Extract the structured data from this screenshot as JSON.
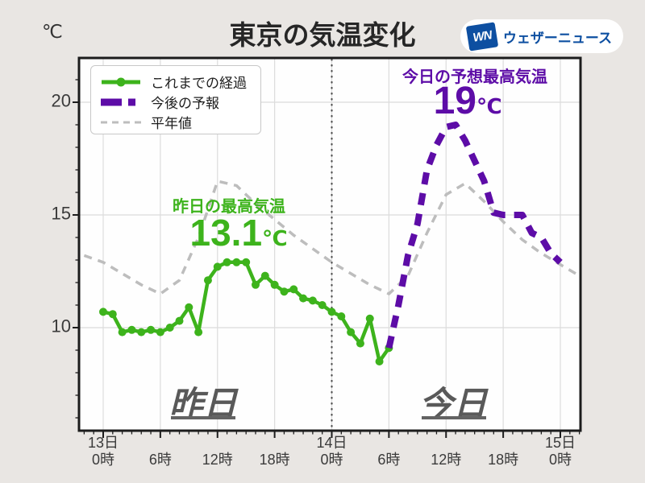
{
  "header": {
    "unit_label": "℃",
    "title": "東京の気温変化",
    "logo": {
      "mark": "WN",
      "brand": "ウェザーニュース",
      "blue": "#0d4fa1"
    }
  },
  "legend": {
    "items": [
      {
        "key": "past",
        "label": "これまでの経過"
      },
      {
        "key": "forecast",
        "label": "今後の予報"
      },
      {
        "key": "normal",
        "label": "平年値"
      }
    ]
  },
  "annotations": {
    "yesterday_max": {
      "label": "昨日の最高気温",
      "value": "13.1",
      "unit": "℃"
    },
    "today_max": {
      "label": "今日の予想最高気温",
      "value": "19",
      "unit": "℃"
    },
    "day_left": "昨日",
    "day_right": "今日"
  },
  "colors": {
    "past": "#3db31c",
    "forecast": "#5d0ca7",
    "normal": "#bdbdbd",
    "grid": "#dcdcdc",
    "divider": "#4d4d4d",
    "frame": "#1c1c1c",
    "plot_bg": "#fefefe",
    "page_bg": "#e9e6e3",
    "tick_text": "#3b3b3b",
    "day_label": "#595959"
  },
  "chart_data": {
    "type": "line",
    "title": "東京の気温変化",
    "ylabel": "℃",
    "ylim": [
      5.4,
      22.0
    ],
    "x_axis_hours_range": [
      -2.5,
      50.1
    ],
    "grid": true,
    "legend_position": "upper-left",
    "y_ticks": [
      10,
      15,
      20
    ],
    "divider_t": 24,
    "x_ticks": [
      {
        "t": 0,
        "day": "13日",
        "hour": "0時"
      },
      {
        "t": 6,
        "day": "",
        "hour": "6時"
      },
      {
        "t": 12,
        "day": "",
        "hour": "12時"
      },
      {
        "t": 18,
        "day": "",
        "hour": "18時"
      },
      {
        "t": 24,
        "day": "14日",
        "hour": "0時"
      },
      {
        "t": 30,
        "day": "",
        "hour": "6時"
      },
      {
        "t": 36,
        "day": "",
        "hour": "12時"
      },
      {
        "t": 42,
        "day": "",
        "hour": "18時"
      },
      {
        "t": 48,
        "day": "15日",
        "hour": "0時"
      }
    ],
    "series": [
      {
        "name": "これまでの経過",
        "style": "solid_markers",
        "color": "#3db31c",
        "t": [
          0,
          1,
          2,
          3,
          4,
          5,
          6,
          7,
          8,
          9,
          10,
          11,
          12,
          13,
          14,
          15,
          16,
          17,
          18,
          19,
          20,
          21,
          22,
          23,
          24,
          25,
          26,
          27,
          28,
          29,
          30
        ],
        "values": [
          10.7,
          10.6,
          9.8,
          9.9,
          9.8,
          9.9,
          9.8,
          10.0,
          10.3,
          10.9,
          9.8,
          12.1,
          12.7,
          12.9,
          12.9,
          12.9,
          11.9,
          12.3,
          11.9,
          11.6,
          11.7,
          11.3,
          11.2,
          11.0,
          10.7,
          10.5,
          9.8,
          9.3,
          10.4,
          8.5,
          9.1
        ]
      },
      {
        "name": "今後の予報",
        "style": "thick_dashed",
        "color": "#5d0ca7",
        "t": [
          30,
          31,
          32,
          33,
          34,
          35,
          36,
          37,
          38,
          39,
          40,
          41,
          42,
          43,
          44,
          45,
          46,
          47,
          48
        ],
        "values": [
          9.1,
          11.0,
          13.2,
          14.6,
          17.0,
          18.1,
          18.9,
          19.0,
          18.3,
          17.4,
          16.5,
          15.1,
          15.0,
          15.0,
          15.0,
          14.2,
          14.0,
          13.3,
          12.9
        ]
      },
      {
        "name": "平年値",
        "style": "thin_dashed",
        "color": "#bdbdbd",
        "t": [
          -2,
          0,
          2,
          4,
          6,
          8,
          10,
          12,
          14,
          16,
          18,
          20,
          22,
          24,
          26,
          28,
          30,
          32,
          34,
          36,
          38,
          40,
          42,
          44,
          46,
          48,
          50
        ],
        "values": [
          13.2,
          12.9,
          12.4,
          11.9,
          11.5,
          12.1,
          14.0,
          16.5,
          16.3,
          15.5,
          14.8,
          14.1,
          13.5,
          12.9,
          12.4,
          11.9,
          11.5,
          12.3,
          14.2,
          15.9,
          16.4,
          15.6,
          14.7,
          13.9,
          13.3,
          12.8,
          12.3
        ]
      }
    ]
  }
}
